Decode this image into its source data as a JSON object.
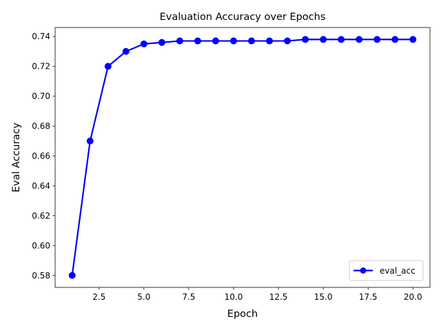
{
  "chart_data": {
    "type": "line",
    "title": "Evaluation Accuracy over Epochs",
    "xlabel": "Epoch",
    "ylabel": "Eval Accuracy",
    "xlim": [
      0.05,
      20.95
    ],
    "ylim": [
      0.572,
      0.746
    ],
    "xticks": [
      2.5,
      5.0,
      7.5,
      10.0,
      12.5,
      15.0,
      17.5,
      20.0
    ],
    "xtick_labels": [
      "2.5",
      "5.0",
      "7.5",
      "10.0",
      "12.5",
      "15.0",
      "17.5",
      "20.0"
    ],
    "yticks": [
      0.58,
      0.6,
      0.62,
      0.64,
      0.66,
      0.68,
      0.7,
      0.72,
      0.74
    ],
    "ytick_labels": [
      "0.58",
      "0.60",
      "0.62",
      "0.64",
      "0.66",
      "0.68",
      "0.70",
      "0.72",
      "0.74"
    ],
    "grid": false,
    "legend_position": "lower-right",
    "series": [
      {
        "name": "eval_acc",
        "color": "#0000ff",
        "marker": "circle",
        "x": [
          1,
          2,
          3,
          4,
          5,
          6,
          7,
          8,
          9,
          10,
          11,
          12,
          13,
          14,
          15,
          16,
          17,
          18,
          19,
          20
        ],
        "y": [
          0.58,
          0.67,
          0.72,
          0.73,
          0.735,
          0.736,
          0.737,
          0.737,
          0.737,
          0.737,
          0.737,
          0.737,
          0.737,
          0.738,
          0.738,
          0.738,
          0.738,
          0.738,
          0.738,
          0.738
        ]
      }
    ]
  }
}
